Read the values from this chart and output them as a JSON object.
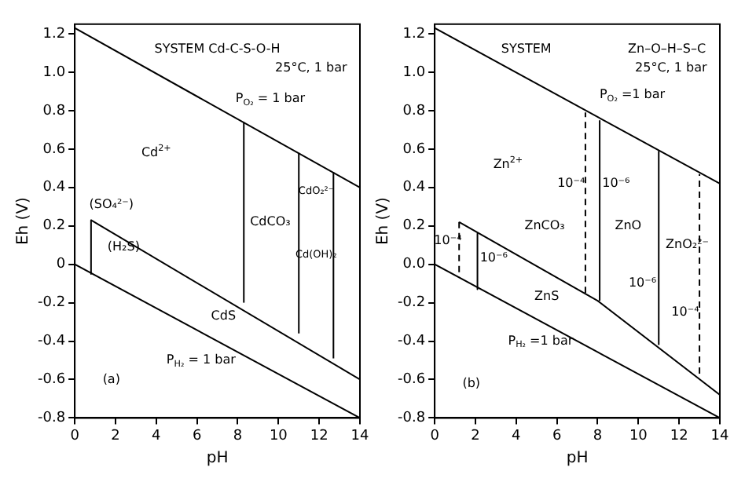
{
  "chart_data": [
    {
      "type": "line",
      "xlabel": "pH",
      "ylabel": "Eh (V)",
      "xlim": [
        0,
        14
      ],
      "ylim": [
        -0.8,
        1.25
      ],
      "xticks": [
        0,
        2,
        4,
        6,
        8,
        10,
        12,
        14
      ],
      "yticks": [
        -0.8,
        -0.6,
        -0.4,
        -0.2,
        0,
        0.2,
        0.4,
        0.6,
        0.8,
        {
          "value": 1,
          "label": "1.0"
        },
        1.2
      ],
      "grid": false,
      "legend": false,
      "marker": "none",
      "series": [
        {
          "color": "#000000",
          "x": [
            0,
            14
          ],
          "values": [
            1.23,
            0.4
          ],
          "line_style": "solid"
        },
        {
          "color": "#000000",
          "x": [
            0,
            14
          ],
          "values": [
            0,
            -0.8
          ],
          "line_style": "solid"
        },
        {
          "color": "#000000",
          "x": [
            0.8,
            14
          ],
          "values": [
            0.23,
            -0.6
          ],
          "line_style": "solid"
        },
        {
          "color": "#000000",
          "x": [
            0.8,
            0.8
          ],
          "values": [
            0.23,
            -0.05
          ],
          "line_style": "solid"
        },
        {
          "color": "#000000",
          "x": [
            8.3,
            8.3
          ],
          "values": [
            -0.2,
            0.74
          ],
          "line_style": "solid"
        },
        {
          "color": "#000000",
          "x": [
            11,
            11
          ],
          "values": [
            -0.36,
            0.58
          ],
          "line_style": "solid"
        },
        {
          "color": "#000000",
          "x": [
            12.7,
            12.7
          ],
          "values": [
            -0.49,
            0.48
          ],
          "line_style": "solid"
        }
      ],
      "annotations": [
        "SYSTEM Cd-C-S-O-H",
        "25°C, 1 bar",
        "P$_{O₂}$ = 1 bar",
        "Cd$^{2+}$",
        "CdCO₃",
        "CdO₂²⁻",
        "Cd(OH)₂",
        "(SO₄²⁻)",
        "(H₂S)",
        "CdS",
        "P$_{H₂}$ = 1 bar",
        "(a)"
      ]
    },
    {
      "type": "line",
      "xlabel": "pH",
      "ylabel": "Eh (V)",
      "xlim": [
        0,
        14
      ],
      "ylim": [
        -0.8,
        1.25
      ],
      "xticks": [
        0,
        2,
        4,
        6,
        8,
        10,
        12,
        14
      ],
      "yticks": [
        {
          "value": -0.8,
          "label": "-0.8"
        },
        {
          "value": -0.6,
          "label": "-0.6"
        },
        {
          "value": -0.4,
          "label": "-0.4"
        },
        {
          "value": -0.2,
          "label": "-0.2"
        },
        {
          "value": 0,
          "label": "0.0"
        },
        0.2,
        0.4,
        0.6,
        0.8,
        {
          "value": 1,
          "label": "1.0"
        },
        1.2
      ],
      "grid": false,
      "legend": false,
      "marker": "none",
      "series": [
        {
          "color": "#000000",
          "x": [
            0,
            14
          ],
          "values": [
            1.23,
            0.42
          ],
          "line_style": "solid"
        },
        {
          "color": "#000000",
          "x": [
            0,
            14
          ],
          "values": [
            0,
            -0.8
          ],
          "line_style": "solid"
        },
        {
          "color": "#000000",
          "x": [
            1.2,
            8,
            14
          ],
          "values": [
            0.22,
            -0.19,
            -0.68
          ],
          "line_style": "solid"
        },
        {
          "color": "#000000",
          "x": [
            1.2,
            1.2
          ],
          "values": [
            0.22,
            -0.07
          ],
          "line_style": "dashed"
        },
        {
          "color": "#000000",
          "x": [
            2.1,
            2.1
          ],
          "values": [
            0.16,
            -0.13
          ],
          "line_style": "solid"
        },
        {
          "color": "#000000",
          "x": [
            7.4,
            7.4
          ],
          "values": [
            -0.15,
            0.79
          ],
          "line_style": "dashed"
        },
        {
          "color": "#000000",
          "x": [
            8.1,
            8.1
          ],
          "values": [
            -0.19,
            0.75
          ],
          "line_style": "solid"
        },
        {
          "color": "#000000",
          "x": [
            11,
            11
          ],
          "values": [
            -0.42,
            0.59
          ],
          "line_style": "solid"
        },
        {
          "color": "#000000",
          "x": [
            13,
            13
          ],
          "values": [
            -0.57,
            0.47
          ],
          "line_style": "dashed"
        }
      ],
      "annotations": [
        "SYSTEM",
        "Zn–O–H–S–C",
        "25°C, 1 bar",
        "P$_{O₂}$ =1 bar",
        "Zn$^{2+}$",
        "10⁻⁴",
        "10⁻⁶",
        "ZnCO₃",
        "ZnO",
        "ZnO₂²⁻",
        "10⁻⁴",
        "10⁻⁶",
        "ZnS",
        "10⁻⁶",
        "10⁻⁴",
        "P$_{H₂}$ =1 bar",
        "(b)"
      ]
    }
  ]
}
